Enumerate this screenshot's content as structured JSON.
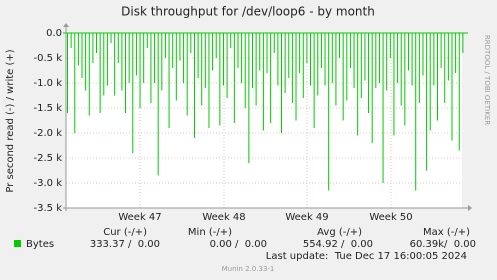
{
  "chart_data": {
    "type": "bar",
    "title": "Disk throughput for /dev/loop6 - by month",
    "y_label": "Pr second read (-) / write (+)",
    "side_text": "RRDTOOL / TOBI OETIKER",
    "xlabels": [
      "Week 47",
      "Week 48",
      "Week 49",
      "Week 50"
    ],
    "series": [
      {
        "name": "Bytes",
        "color": "#00cc00",
        "values": [
          -1600,
          -300,
          -2000,
          -650,
          -900,
          -1150,
          -1650,
          -600,
          -400,
          -1600,
          -1250,
          -1050,
          -200,
          -1250,
          -600,
          -1150,
          -1600,
          -1000,
          -2400,
          -850,
          -1500,
          -1000,
          -300,
          -1400,
          -1000,
          -2850,
          -1150,
          -500,
          -1900,
          -700,
          -1350,
          -550,
          -1000,
          -1650,
          -400,
          -2100,
          -900,
          -1450,
          -1100,
          -1900,
          -750,
          -500,
          -1850,
          -1050,
          -1300,
          -300,
          -1800,
          -700,
          -1000,
          -1500,
          -2600,
          -1100,
          -1450,
          -750,
          -1950,
          -800,
          -1800,
          -400,
          -1050,
          -2000,
          -1200,
          -900,
          -1400,
          -1750,
          -800,
          -1300,
          -600,
          -1050,
          -1900,
          -1250,
          -700,
          -1050,
          -3150,
          -1000,
          -1450,
          -500,
          -1750,
          -1350,
          -700,
          -1100,
          -2050,
          -1300,
          -950,
          -1600,
          -2200,
          -1100,
          -1000,
          -3000,
          -1150,
          -500,
          -2050,
          -1000,
          -1450,
          -1850,
          -750,
          -1050,
          -3150,
          -1400,
          -850,
          -2750,
          -1950,
          -1050,
          -1750,
          -700,
          -1400,
          -950,
          -2150,
          -800,
          -2350,
          -400
        ]
      }
    ],
    "legend_headers": [
      "Cur (-/+)",
      "Min (-/+)",
      "Avg (-/+)",
      "Max (-/+)"
    ],
    "legend_values": [
      "333.37 /  0.00",
      "0.00 /  0.00",
      "554.92 /  0.00",
      "60.39k/  0.00"
    ],
    "last_update": "Last update:  Tue Dec 17 16:00:05 2024",
    "footer": "Munin 2.0.33-1",
    "ylim": [
      -3500,
      0
    ],
    "yticks": [
      {
        "value": 0,
        "label": "0.0"
      },
      {
        "value": -500,
        "label": "-0.5 k"
      },
      {
        "value": -1000,
        "label": "-1.0 k"
      },
      {
        "value": -1500,
        "label": "-1.5 k"
      },
      {
        "value": -2000,
        "label": "-2.0 k"
      },
      {
        "value": -2500,
        "label": "-2.5 k"
      },
      {
        "value": -3000,
        "label": "-3.0 k"
      },
      {
        "value": -3500,
        "label": "-3.5 k"
      }
    ],
    "grid": true
  }
}
